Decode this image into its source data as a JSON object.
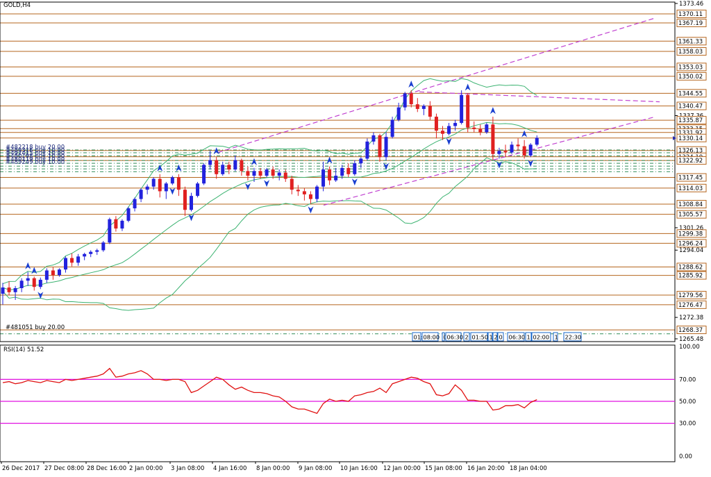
{
  "window": {
    "title": "GOLD,H4"
  },
  "colors": {
    "up": "#2222dd",
    "down": "#e02020",
    "level": "#b5651d",
    "order": "#2e8b57",
    "bands": "#3cb371",
    "channel": "#c040d0",
    "rsi": "#e01010",
    "rsi_level": "#e010e0",
    "arrow": "#1a3fd0",
    "axis_box": "#1464c8"
  },
  "price_axis": {
    "ticks": [
      "1373.46",
      "1337.36",
      "1301.26",
      "1294.04",
      "1272.38",
      "1265.48"
    ],
    "levels": [
      "1370.11",
      "1367.19",
      "1361.33",
      "1358.03",
      "1353.03",
      "1350.02",
      "1344.55",
      "1340.47",
      "1335.87",
      "1333.15",
      "1331.92",
      "1330.14",
      "1326.13",
      "1324.10",
      "1322.92",
      "1317.45",
      "1314.03",
      "1308.84",
      "1305.57",
      "1299.38",
      "1296.24",
      "1288.62",
      "1285.92",
      "1279.56",
      "1276.47",
      "1268.37"
    ]
  },
  "orders": {
    "top_group": [
      "#482218 buy 20.00",
      "#489316 buy 10.00",
      "#492415 buy 10.00",
      "#480198 buy 10.00",
      "#480119 buy 10.00",
      "#489249 buy 10.00"
    ],
    "bottom": "#481051 buy 20.00"
  },
  "rsi_panel": {
    "title": "RSI(14) 51.52",
    "ticks": [
      "100.00",
      "70.00",
      "50.00",
      "30.00",
      "0.00"
    ]
  },
  "time_axis": [
    "26 Dec 2017",
    "27 Dec 08:00",
    "28 Dec 16:00",
    "2 Jan 00:00",
    "3 Jan 08:00",
    "4 Jan 16:00",
    "8 Jan 00:00",
    "9 Jan 08:00",
    "10 Jan 16:00",
    "12 Jan 00:00",
    "15 Jan 08:00",
    "16 Jan 20:00",
    "18 Jan 04:00"
  ],
  "session_labels": [
    "01:",
    "08:00",
    "0",
    "06:30",
    "2",
    "01:50",
    "1",
    "2",
    "0",
    "06:30",
    "1",
    "02:00",
    "1",
    "22:30"
  ],
  "chart_data": {
    "type": "candlestick",
    "title": "GOLD,H4",
    "indicator": "RSI(14)",
    "rsi_last": 51.52,
    "ylim": [
      1265.48,
      1373.46
    ],
    "candles": [
      [
        1280.0,
        1283.5,
        1276.5,
        1282.0
      ],
      [
        1282.0,
        1284.0,
        1279.5,
        1280.5
      ],
      [
        1280.5,
        1282.5,
        1278.0,
        1281.8
      ],
      [
        1281.8,
        1285.0,
        1280.5,
        1284.2
      ],
      [
        1284.2,
        1287.0,
        1282.5,
        1285.0
      ],
      [
        1285.0,
        1285.5,
        1281.0,
        1282.2
      ],
      [
        1282.2,
        1285.2,
        1281.5,
        1284.5
      ],
      [
        1284.5,
        1288.2,
        1283.5,
        1287.5
      ],
      [
        1287.5,
        1288.5,
        1284.5,
        1286.0
      ],
      [
        1286.0,
        1288.2,
        1285.5,
        1287.8
      ],
      [
        1287.8,
        1292.0,
        1286.8,
        1291.5
      ],
      [
        1291.5,
        1293.0,
        1288.8,
        1290.0
      ],
      [
        1290.0,
        1292.8,
        1289.0,
        1292.0
      ],
      [
        1292.0,
        1293.2,
        1290.8,
        1292.8
      ],
      [
        1292.8,
        1294.0,
        1291.8,
        1293.5
      ],
      [
        1293.5,
        1294.5,
        1292.5,
        1294.0
      ],
      [
        1294.0,
        1297.0,
        1293.5,
        1296.5
      ],
      [
        1296.5,
        1304.5,
        1296.0,
        1304.0
      ],
      [
        1304.0,
        1305.0,
        1300.0,
        1301.0
      ],
      [
        1301.0,
        1304.0,
        1300.2,
        1303.5
      ],
      [
        1303.5,
        1308.0,
        1303.0,
        1307.5
      ],
      [
        1307.5,
        1311.0,
        1306.5,
        1310.5
      ],
      [
        1310.5,
        1314.0,
        1309.5,
        1313.5
      ],
      [
        1313.5,
        1315.2,
        1312.0,
        1314.5
      ],
      [
        1314.5,
        1317.5,
        1313.5,
        1317.0
      ],
      [
        1317.0,
        1318.5,
        1311.0,
        1313.0
      ],
      [
        1313.0,
        1316.0,
        1310.5,
        1315.5
      ],
      [
        1315.5,
        1318.0,
        1315.0,
        1317.5
      ],
      [
        1317.5,
        1318.5,
        1311.5,
        1313.5
      ],
      [
        1313.5,
        1314.5,
        1305.0,
        1307.0
      ],
      [
        1307.0,
        1312.5,
        1306.5,
        1311.5
      ],
      [
        1311.5,
        1316.0,
        1311.0,
        1315.5
      ],
      [
        1315.5,
        1322.0,
        1315.0,
        1321.5
      ],
      [
        1321.5,
        1326.0,
        1320.0,
        1323.0
      ],
      [
        1323.0,
        1324.0,
        1317.0,
        1318.5
      ],
      [
        1318.5,
        1322.5,
        1318.0,
        1321.5
      ],
      [
        1321.5,
        1322.5,
        1318.5,
        1320.0
      ],
      [
        1320.0,
        1324.5,
        1319.5,
        1323.0
      ],
      [
        1323.0,
        1323.5,
        1318.0,
        1319.5
      ],
      [
        1319.5,
        1321.0,
        1316.5,
        1318.0
      ],
      [
        1318.0,
        1320.5,
        1316.0,
        1319.5
      ],
      [
        1319.5,
        1320.5,
        1317.0,
        1318.0
      ],
      [
        1318.0,
        1320.5,
        1317.5,
        1320.0
      ],
      [
        1320.0,
        1321.0,
        1317.0,
        1318.0
      ],
      [
        1318.0,
        1320.0,
        1316.5,
        1319.0
      ],
      [
        1319.0,
        1320.0,
        1316.0,
        1317.0
      ],
      [
        1317.0,
        1318.0,
        1312.0,
        1313.5
      ],
      [
        1313.5,
        1315.0,
        1311.5,
        1313.0
      ],
      [
        1313.0,
        1314.0,
        1310.0,
        1312.0
      ],
      [
        1312.0,
        1313.0,
        1309.0,
        1310.5
      ],
      [
        1310.5,
        1315.0,
        1309.5,
        1314.5
      ],
      [
        1314.5,
        1322.5,
        1313.0,
        1320.0
      ],
      [
        1320.0,
        1321.0,
        1315.0,
        1316.5
      ],
      [
        1316.5,
        1320.5,
        1316.0,
        1318.0
      ],
      [
        1318.0,
        1321.5,
        1317.0,
        1320.5
      ],
      [
        1320.5,
        1322.0,
        1317.5,
        1318.5
      ],
      [
        1318.5,
        1323.0,
        1318.0,
        1322.0
      ],
      [
        1322.0,
        1324.0,
        1320.5,
        1323.5
      ],
      [
        1323.5,
        1330.0,
        1323.0,
        1329.0
      ],
      [
        1329.0,
        1332.0,
        1328.0,
        1331.0
      ],
      [
        1331.0,
        1331.5,
        1322.5,
        1324.0
      ],
      [
        1324.0,
        1332.0,
        1323.0,
        1330.5
      ],
      [
        1330.5,
        1337.0,
        1330.0,
        1336.0
      ],
      [
        1336.0,
        1341.5,
        1335.5,
        1340.0
      ],
      [
        1340.0,
        1345.0,
        1339.0,
        1344.5
      ],
      [
        1344.5,
        1345.5,
        1340.0,
        1341.0
      ],
      [
        1341.0,
        1343.0,
        1338.5,
        1339.5
      ],
      [
        1339.5,
        1341.0,
        1337.5,
        1340.5
      ],
      [
        1340.5,
        1342.0,
        1336.0,
        1337.0
      ],
      [
        1337.0,
        1338.0,
        1330.0,
        1332.5
      ],
      [
        1332.5,
        1334.0,
        1329.5,
        1331.5
      ],
      [
        1331.5,
        1335.0,
        1331.0,
        1334.0
      ],
      [
        1334.0,
        1336.0,
        1332.5,
        1335.0
      ],
      [
        1335.0,
        1345.5,
        1334.5,
        1344.0
      ],
      [
        1344.0,
        1344.5,
        1332.0,
        1333.5
      ],
      [
        1333.5,
        1335.5,
        1332.0,
        1333.0
      ],
      [
        1333.0,
        1334.5,
        1331.0,
        1332.0
      ],
      [
        1332.0,
        1335.0,
        1331.5,
        1334.5
      ],
      [
        1334.5,
        1337.0,
        1323.0,
        1325.0
      ],
      [
        1325.0,
        1327.0,
        1323.5,
        1326.0
      ],
      [
        1326.0,
        1328.0,
        1324.0,
        1325.5
      ],
      [
        1325.5,
        1329.0,
        1325.0,
        1328.0
      ],
      [
        1328.0,
        1330.0,
        1326.0,
        1327.5
      ],
      [
        1327.5,
        1329.5,
        1323.5,
        1324.5
      ],
      [
        1324.5,
        1328.5,
        1324.0,
        1328.0
      ],
      [
        1328.0,
        1331.0,
        1327.5,
        1330.2
      ]
    ],
    "rsi": [
      67,
      68,
      66,
      67,
      69,
      68,
      67,
      69,
      68,
      67,
      70,
      69,
      70,
      71,
      72,
      73,
      75,
      80,
      72,
      73,
      75,
      76,
      78,
      75,
      70,
      70,
      69,
      70,
      70,
      68,
      58,
      60,
      64,
      68,
      72,
      70,
      65,
      61,
      63,
      60,
      58,
      58,
      57,
      55,
      54,
      50,
      45,
      43,
      43,
      41,
      39,
      48,
      52,
      50,
      51,
      50,
      55,
      56,
      58,
      59,
      62,
      58,
      66,
      68,
      70,
      72,
      71,
      68,
      66,
      56,
      55,
      57,
      65,
      60,
      51,
      51,
      50,
      50,
      42,
      43,
      46,
      46,
      47,
      44,
      49,
      51.52
    ]
  }
}
